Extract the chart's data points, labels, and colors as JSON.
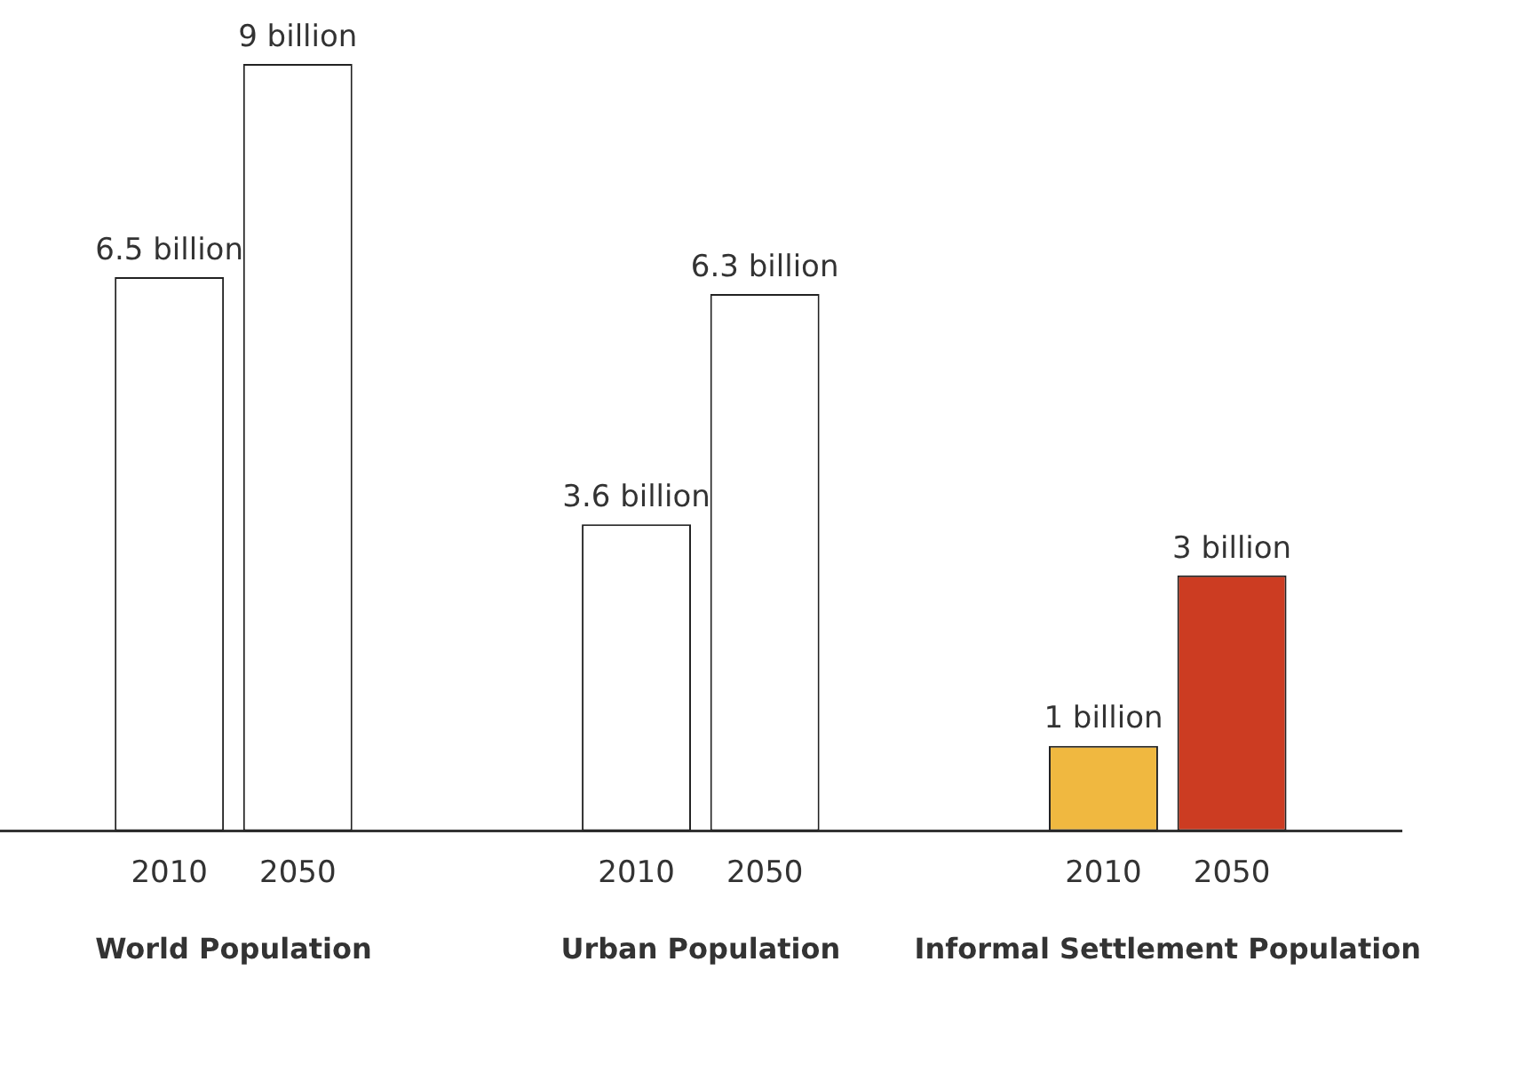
{
  "chart_data": {
    "type": "bar",
    "categories": [
      "World Population",
      "Urban Population",
      "Informal Settlement Population"
    ],
    "series": [
      {
        "name": "2010",
        "colors": [
          "#ffffff",
          "#ffffff",
          "#f0b840"
        ],
        "values": [
          6.5,
          3.6,
          1
        ],
        "value_labels": [
          "6.5 billion",
          "3.6 billion",
          "1 billion"
        ]
      },
      {
        "name": "2050",
        "colors": [
          "#ffffff",
          "#ffffff",
          "#cc3c22"
        ],
        "values": [
          9,
          6.3,
          3
        ],
        "value_labels": [
          "9 billion",
          "6.3 billion",
          "3 billion"
        ]
      }
    ],
    "grid": false,
    "legend": false,
    "tick_labels": "x"
  }
}
